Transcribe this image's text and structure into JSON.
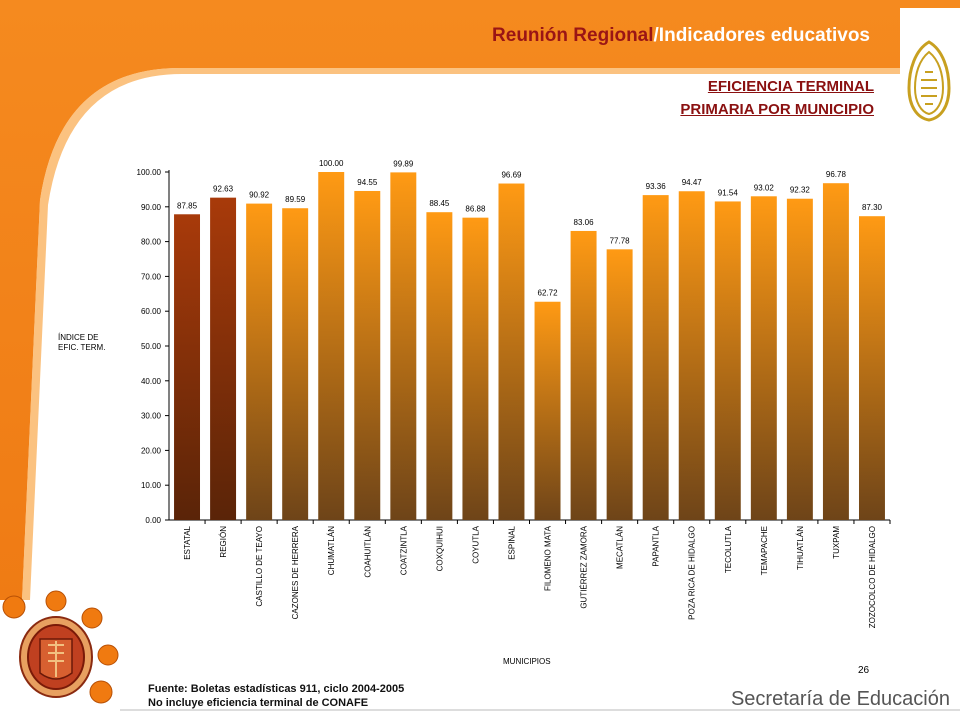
{
  "header": {
    "title_accent": "Reunión Regional",
    "title_rest": "/Indicadores educativos"
  },
  "subtitle": {
    "line1": "EFICIENCIA TERMINAL",
    "line2": "PRIMARIA POR MUNICIPIO"
  },
  "chart_data": {
    "type": "bar",
    "title": "EFICIENCIA TERMINAL PRIMARIA POR MUNICIPIO",
    "ylabel_lines": [
      "ÍNDICE DE",
      "EFIC. TERM."
    ],
    "xlabel": "MUNICIPIOS",
    "ylim": [
      0,
      100
    ],
    "yticks": [
      "0.00",
      "10.00",
      "20.00",
      "30.00",
      "40.00",
      "50.00",
      "60.00",
      "70.00",
      "80.00",
      "90.00",
      "100.00"
    ],
    "grid": false,
    "categories": [
      "ESTATAL",
      "REGIÓN",
      "CASTILLO DE TEAYO",
      "CAZONES DE HERRERA",
      "CHUMATLÁN",
      "COAHUITLÁN",
      "COATZINTLA",
      "COXQUIHUI",
      "COYUTLA",
      "ESPINAL",
      "FILOMENO MATA",
      "GUTIÉRREZ ZAMORA",
      "MECATLÁN",
      "PAPANTLA",
      "POZA RICA DE HIDALGO",
      "TECOLUTLA",
      "TEMAPACHE",
      "TIHUATLÁN",
      "TUXPAM",
      "ZOZOCOLCO DE HIDALGO"
    ],
    "values": [
      87.85,
      92.63,
      90.92,
      89.59,
      100.0,
      94.55,
      99.89,
      88.45,
      86.88,
      96.69,
      62.72,
      83.06,
      77.78,
      93.36,
      94.47,
      91.54,
      93.02,
      92.32,
      96.78,
      87.3
    ],
    "data_labels": [
      "87.85",
      "92.63",
      "90.92",
      "89.59",
      "100.00",
      "94.55",
      "99.89",
      "88.45",
      "86.88",
      "96.69",
      "62.72",
      "83.06",
      "77.78",
      "93.36",
      "94.47",
      "91.54",
      "93.02",
      "92.32",
      "96.78",
      "87.30"
    ],
    "colors": {
      "highlight": [
        "#a83a0a",
        "#5a2408"
      ],
      "normal": [
        "#ff9a14",
        "#6e4418"
      ],
      "axis": "#000000"
    },
    "highlight_count": 2
  },
  "page_number": "26",
  "source": {
    "line1": "Fuente: Boletas estadísticas  911, ciclo 2004-2005",
    "line2": "No incluye eficiencia terminal de CONAFE"
  },
  "footer": {
    "brand": "Secretaría de Educación"
  },
  "theme": {
    "orange": "#f28a1e",
    "title_red": "#9a1515"
  }
}
